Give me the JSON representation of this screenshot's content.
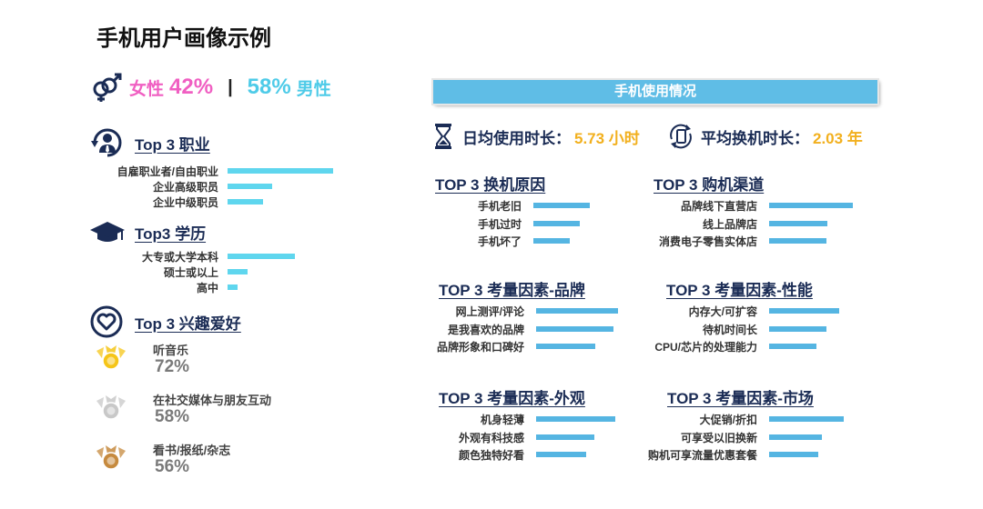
{
  "title": "手机用户画像示例",
  "gender": {
    "female_label": "女性",
    "female_pct": "42%",
    "separator": "|",
    "male_pct": "58%",
    "male_label": "男性",
    "icon": "gender-symbols-icon"
  },
  "occupation": {
    "title": "Top 3 职业",
    "icon": "professional-person-icon",
    "items": [
      {
        "label": "自雇职业者/自由职业",
        "value": 1.0
      },
      {
        "label": "企业高级职员",
        "value": 0.42
      },
      {
        "label": "企业中级职员",
        "value": 0.34
      }
    ]
  },
  "education": {
    "title": "Top3 学历",
    "icon": "graduation-cap-icon",
    "items": [
      {
        "label": "大专或大学本科",
        "value": 1.0
      },
      {
        "label": "硕士或以上",
        "value": 0.3
      },
      {
        "label": "高中",
        "value": 0.15
      }
    ]
  },
  "interests": {
    "title": "Top 3 兴趣爱好",
    "icon": "heart-icon",
    "items": [
      {
        "name": "听音乐",
        "pct": "72%",
        "medal_color": "#f5c518",
        "icon": "gold-medal-icon"
      },
      {
        "name": "在社交媒体与朋友互动",
        "pct": "58%",
        "medal_color": "#c8c8c8",
        "icon": "silver-medal-icon"
      },
      {
        "name": "看书/报纸/杂志",
        "pct": "56%",
        "medal_color": "#c68a3e",
        "icon": "bronze-medal-icon"
      }
    ]
  },
  "usage": {
    "banner": "手机使用情况",
    "daily_label": "日均使用时长：",
    "daily_value": "5.73 小时",
    "daily_icon": "hourglass-icon",
    "replace_label": "平均换机时长：",
    "replace_value": "2.03 年",
    "replace_icon": "phone-cycle-icon"
  },
  "panels": [
    {
      "title": "TOP 3 换机原因",
      "items": [
        {
          "label": "手机老旧",
          "value": 1.0
        },
        {
          "label": "手机过时",
          "value": 0.83
        },
        {
          "label": "手机坏了",
          "value": 0.64
        }
      ]
    },
    {
      "title": "TOP 3 购机渠道",
      "items": [
        {
          "label": "品牌线下直营店",
          "value": 1.0
        },
        {
          "label": "线上品牌店",
          "value": 0.7
        },
        {
          "label": "消费电子零售实体店",
          "value": 0.69
        }
      ]
    },
    {
      "title": "TOP 3 考量因素-品牌",
      "items": [
        {
          "label": "网上测评/评论",
          "value": 1.0
        },
        {
          "label": "是我喜欢的品牌",
          "value": 0.94
        },
        {
          "label": "品牌形象和口碑好",
          "value": 0.72
        }
      ]
    },
    {
      "title": "TOP 3 考量因素-性能",
      "items": [
        {
          "label": "内存大/可扩容",
          "value": 1.0
        },
        {
          "label": "待机时间长",
          "value": 0.82
        },
        {
          "label": "CPU/芯片的处理能力",
          "value": 0.68
        }
      ]
    },
    {
      "title": "TOP 3 考量因素-外观",
      "items": [
        {
          "label": "机身轻薄",
          "value": 1.0
        },
        {
          "label": "外观有科技感",
          "value": 0.73
        },
        {
          "label": "颜色独特好看",
          "value": 0.63
        }
      ]
    },
    {
      "title": "TOP 3 考量因素-市场",
      "items": [
        {
          "label": "大促销/折扣",
          "value": 1.0
        },
        {
          "label": "可享受以旧换新",
          "value": 0.71
        },
        {
          "label": "购机可享流量优惠套餐",
          "value": 0.66
        }
      ]
    }
  ]
}
